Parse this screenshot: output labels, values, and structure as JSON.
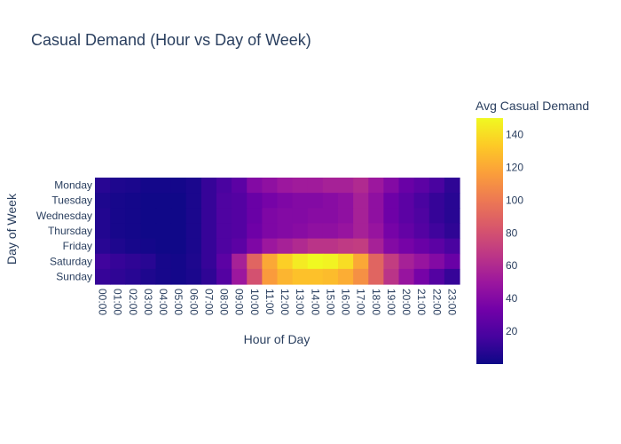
{
  "chart_data": {
    "type": "heatmap",
    "title": "Casual Demand (Hour vs Day of Week)",
    "xlabel": "Hour of Day",
    "ylabel": "Day of Week",
    "x": [
      "00:00",
      "01:00",
      "02:00",
      "03:00",
      "04:00",
      "05:00",
      "06:00",
      "07:00",
      "08:00",
      "09:00",
      "10:00",
      "11:00",
      "12:00",
      "13:00",
      "14:00",
      "15:00",
      "16:00",
      "17:00",
      "18:00",
      "19:00",
      "20:00",
      "21:00",
      "22:00",
      "23:00"
    ],
    "y": [
      "Monday",
      "Tuesday",
      "Wednesday",
      "Thursday",
      "Friday",
      "Saturday",
      "Sunday"
    ],
    "z": [
      [
        8,
        5,
        4,
        2,
        2,
        2,
        4,
        12,
        18,
        25,
        40,
        45,
        50,
        52,
        52,
        55,
        55,
        60,
        50,
        40,
        30,
        25,
        18,
        10
      ],
      [
        5,
        3,
        2,
        1,
        1,
        1,
        4,
        12,
        20,
        22,
        30,
        35,
        38,
        40,
        40,
        42,
        45,
        55,
        45,
        32,
        25,
        18,
        12,
        8
      ],
      [
        6,
        3,
        2,
        1,
        1,
        1,
        4,
        12,
        20,
        22,
        30,
        38,
        40,
        40,
        42,
        42,
        45,
        55,
        45,
        32,
        25,
        20,
        12,
        8
      ],
      [
        6,
        3,
        2,
        1,
        1,
        1,
        4,
        12,
        20,
        22,
        32,
        38,
        40,
        42,
        45,
        45,
        48,
        55,
        48,
        35,
        28,
        22,
        15,
        10
      ],
      [
        8,
        5,
        3,
        2,
        1,
        1,
        4,
        12,
        20,
        25,
        38,
        50,
        55,
        60,
        65,
        65,
        68,
        70,
        55,
        40,
        35,
        30,
        25,
        18
      ],
      [
        15,
        12,
        10,
        8,
        3,
        2,
        5,
        12,
        25,
        55,
        90,
        120,
        135,
        145,
        150,
        148,
        140,
        120,
        90,
        70,
        55,
        48,
        40,
        30
      ],
      [
        12,
        10,
        8,
        5,
        3,
        2,
        4,
        10,
        22,
        50,
        80,
        115,
        125,
        130,
        130,
        128,
        122,
        110,
        90,
        65,
        48,
        35,
        22,
        12
      ]
    ],
    "colorbar": {
      "title": "Avg Casual Demand",
      "min": 0,
      "max": 150,
      "ticks": [
        20,
        40,
        60,
        80,
        100,
        120,
        140
      ]
    },
    "colorscale": [
      "#0d0887",
      "#46039f",
      "#7201a8",
      "#9c179e",
      "#bd3786",
      "#d8576b",
      "#ed7953",
      "#fb9f3a",
      "#fdca26",
      "#f0f921"
    ]
  }
}
